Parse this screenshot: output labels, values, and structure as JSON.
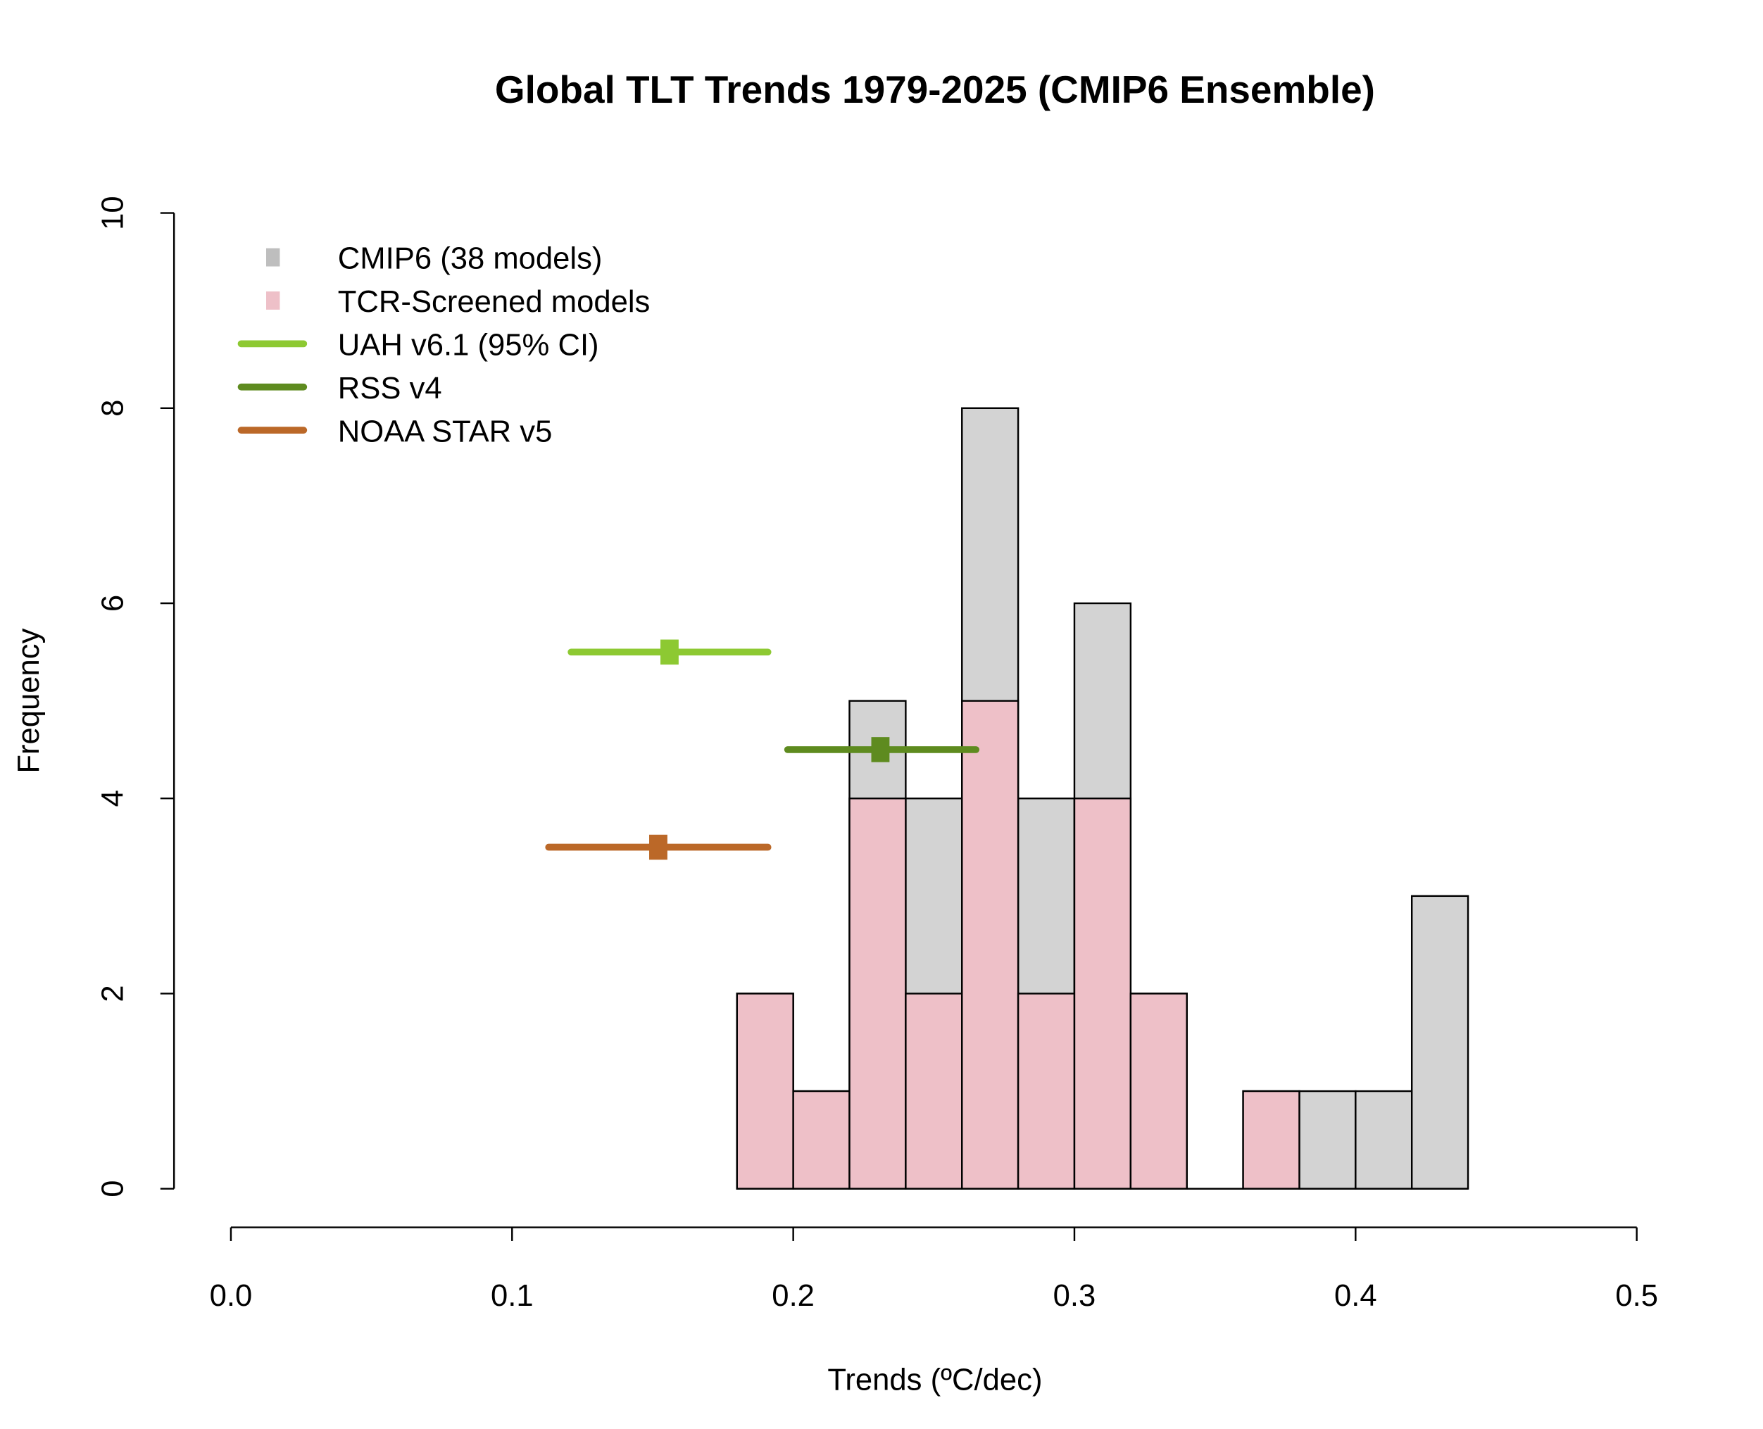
{
  "chart_data": {
    "type": "bar",
    "title": "Global TLT Trends 1979-2025 (CMIP6 Ensemble)",
    "xlabel": "Trends (ºC/dec)",
    "ylabel": "Frequency",
    "xlim": [
      0,
      0.5
    ],
    "ylim": [
      0,
      10
    ],
    "x_ticks": [
      "0.0",
      "0.1",
      "0.2",
      "0.3",
      "0.4",
      "0.5"
    ],
    "y_ticks": [
      "0",
      "2",
      "4",
      "6",
      "8",
      "10"
    ],
    "grid": false,
    "legend_position": "top-left",
    "bin_edges": [
      0.18,
      0.2,
      0.22,
      0.24,
      0.26,
      0.28,
      0.3,
      0.32,
      0.34,
      0.36,
      0.38,
      0.4,
      0.42,
      0.44
    ],
    "series": [
      {
        "name": "CMIP6 (38 models)",
        "color": "#d3d3d3",
        "legend_color": "#bebebe",
        "values": [
          2,
          1,
          5,
          4,
          8,
          4,
          6,
          2,
          0,
          1,
          1,
          1,
          3
        ]
      },
      {
        "name": "TCR-Screened models",
        "color": "#eec0c8",
        "legend_color": "#eec0c8",
        "values": [
          2,
          1,
          4,
          2,
          5,
          2,
          4,
          2,
          0,
          1,
          0,
          0,
          0
        ]
      }
    ],
    "observations": [
      {
        "name": "UAH v6.1 (95% CI)",
        "color": "#8dc932",
        "trend": 0.156,
        "ci": [
          0.121,
          0.191
        ],
        "y": 5.5
      },
      {
        "name": "RSS v4",
        "color": "#5e8b1f",
        "trend": 0.231,
        "ci": [
          0.198,
          0.265
        ],
        "y": 4.5
      },
      {
        "name": "NOAA STAR v5",
        "color": "#bb6828",
        "trend": 0.152,
        "ci": [
          0.113,
          0.191
        ],
        "y": 3.5
      }
    ]
  }
}
